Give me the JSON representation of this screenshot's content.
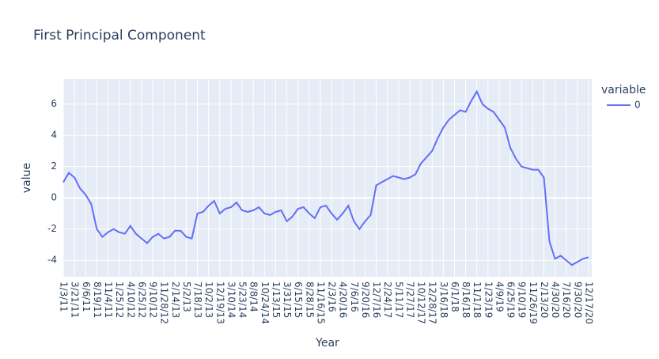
{
  "chart_data": {
    "type": "line",
    "title": "First Principal Component",
    "x_label": "Year",
    "y_label": "value",
    "legend_title": "variable",
    "categories": [
      "1/3/11",
      null,
      "3/21/11",
      null,
      "6/6/11",
      null,
      "8/19/11",
      null,
      "11/4/11",
      null,
      "1/25/12",
      null,
      "4/10/12",
      null,
      "6/25/12",
      null,
      "9/10/12",
      null,
      "11/28/12",
      null,
      "2/14/13",
      null,
      "5/2/13",
      null,
      "7/18/13",
      null,
      "10/2/13",
      null,
      "12/19/13",
      null,
      "3/10/14",
      null,
      "5/23/14",
      null,
      "8/8/14",
      null,
      "10/24/14",
      null,
      "1/13/15",
      null,
      "3/31/15",
      null,
      "6/15/15",
      null,
      "8/28/15",
      null,
      "11/16/15",
      null,
      "2/3/16",
      null,
      "4/20/16",
      null,
      "7/6/16",
      null,
      "9/20/16",
      null,
      "12/7/16",
      null,
      "2/24/17",
      null,
      "5/11/17",
      null,
      "7/27/17",
      null,
      "10/12/17",
      null,
      "12/28/17",
      null,
      "3/16/18",
      null,
      "6/1/18",
      null,
      "8/16/18",
      null,
      "11/1/18",
      null,
      "1/23/19",
      null,
      "4/9/19",
      null,
      "6/25/19",
      null,
      "9/10/19",
      null,
      "11/26/19",
      null,
      "2/13/20",
      null,
      "4/30/20",
      null,
      "7/16/20",
      null,
      "9/30/20",
      null,
      "12/17/20"
    ],
    "series": [
      {
        "name": "0",
        "color": "#636efa",
        "values": [
          1.0,
          1.6,
          1.3,
          0.6,
          0.2,
          -0.4,
          -2.0,
          -2.5,
          -2.2,
          -2.0,
          -2.2,
          -2.3,
          -1.8,
          -2.3,
          -2.6,
          -2.9,
          -2.5,
          -2.3,
          -2.6,
          -2.5,
          -2.1,
          -2.1,
          -2.5,
          -2.6,
          -1.0,
          -0.9,
          -0.5,
          -0.2,
          -1.0,
          -0.7,
          -0.6,
          -0.3,
          -0.8,
          -0.9,
          -0.8,
          -0.6,
          -1.0,
          -1.1,
          -0.9,
          -0.8,
          -1.5,
          -1.2,
          -0.7,
          -0.6,
          -1.0,
          -1.3,
          -0.6,
          -0.5,
          -1.0,
          -1.4,
          -1.0,
          -0.5,
          -1.5,
          -2.0,
          -1.5,
          -1.1,
          0.8,
          1.0,
          1.2,
          1.4,
          1.3,
          1.2,
          1.3,
          1.5,
          2.2,
          2.6,
          3.0,
          3.8,
          4.5,
          5.0,
          5.3,
          5.6,
          5.5,
          6.2,
          6.8,
          6.0,
          5.7,
          5.5,
          5.0,
          4.5,
          3.2,
          2.5,
          2.0,
          1.9,
          1.8,
          1.8,
          1.3,
          -2.8,
          -3.9,
          -3.7,
          -4.0,
          -4.3,
          -4.1,
          -3.9,
          -3.8
        ]
      }
    ],
    "ylim": [
      -5.05,
      7.6
    ],
    "yticks": [
      -4,
      -2,
      0,
      2,
      4,
      6
    ],
    "grid": true
  }
}
